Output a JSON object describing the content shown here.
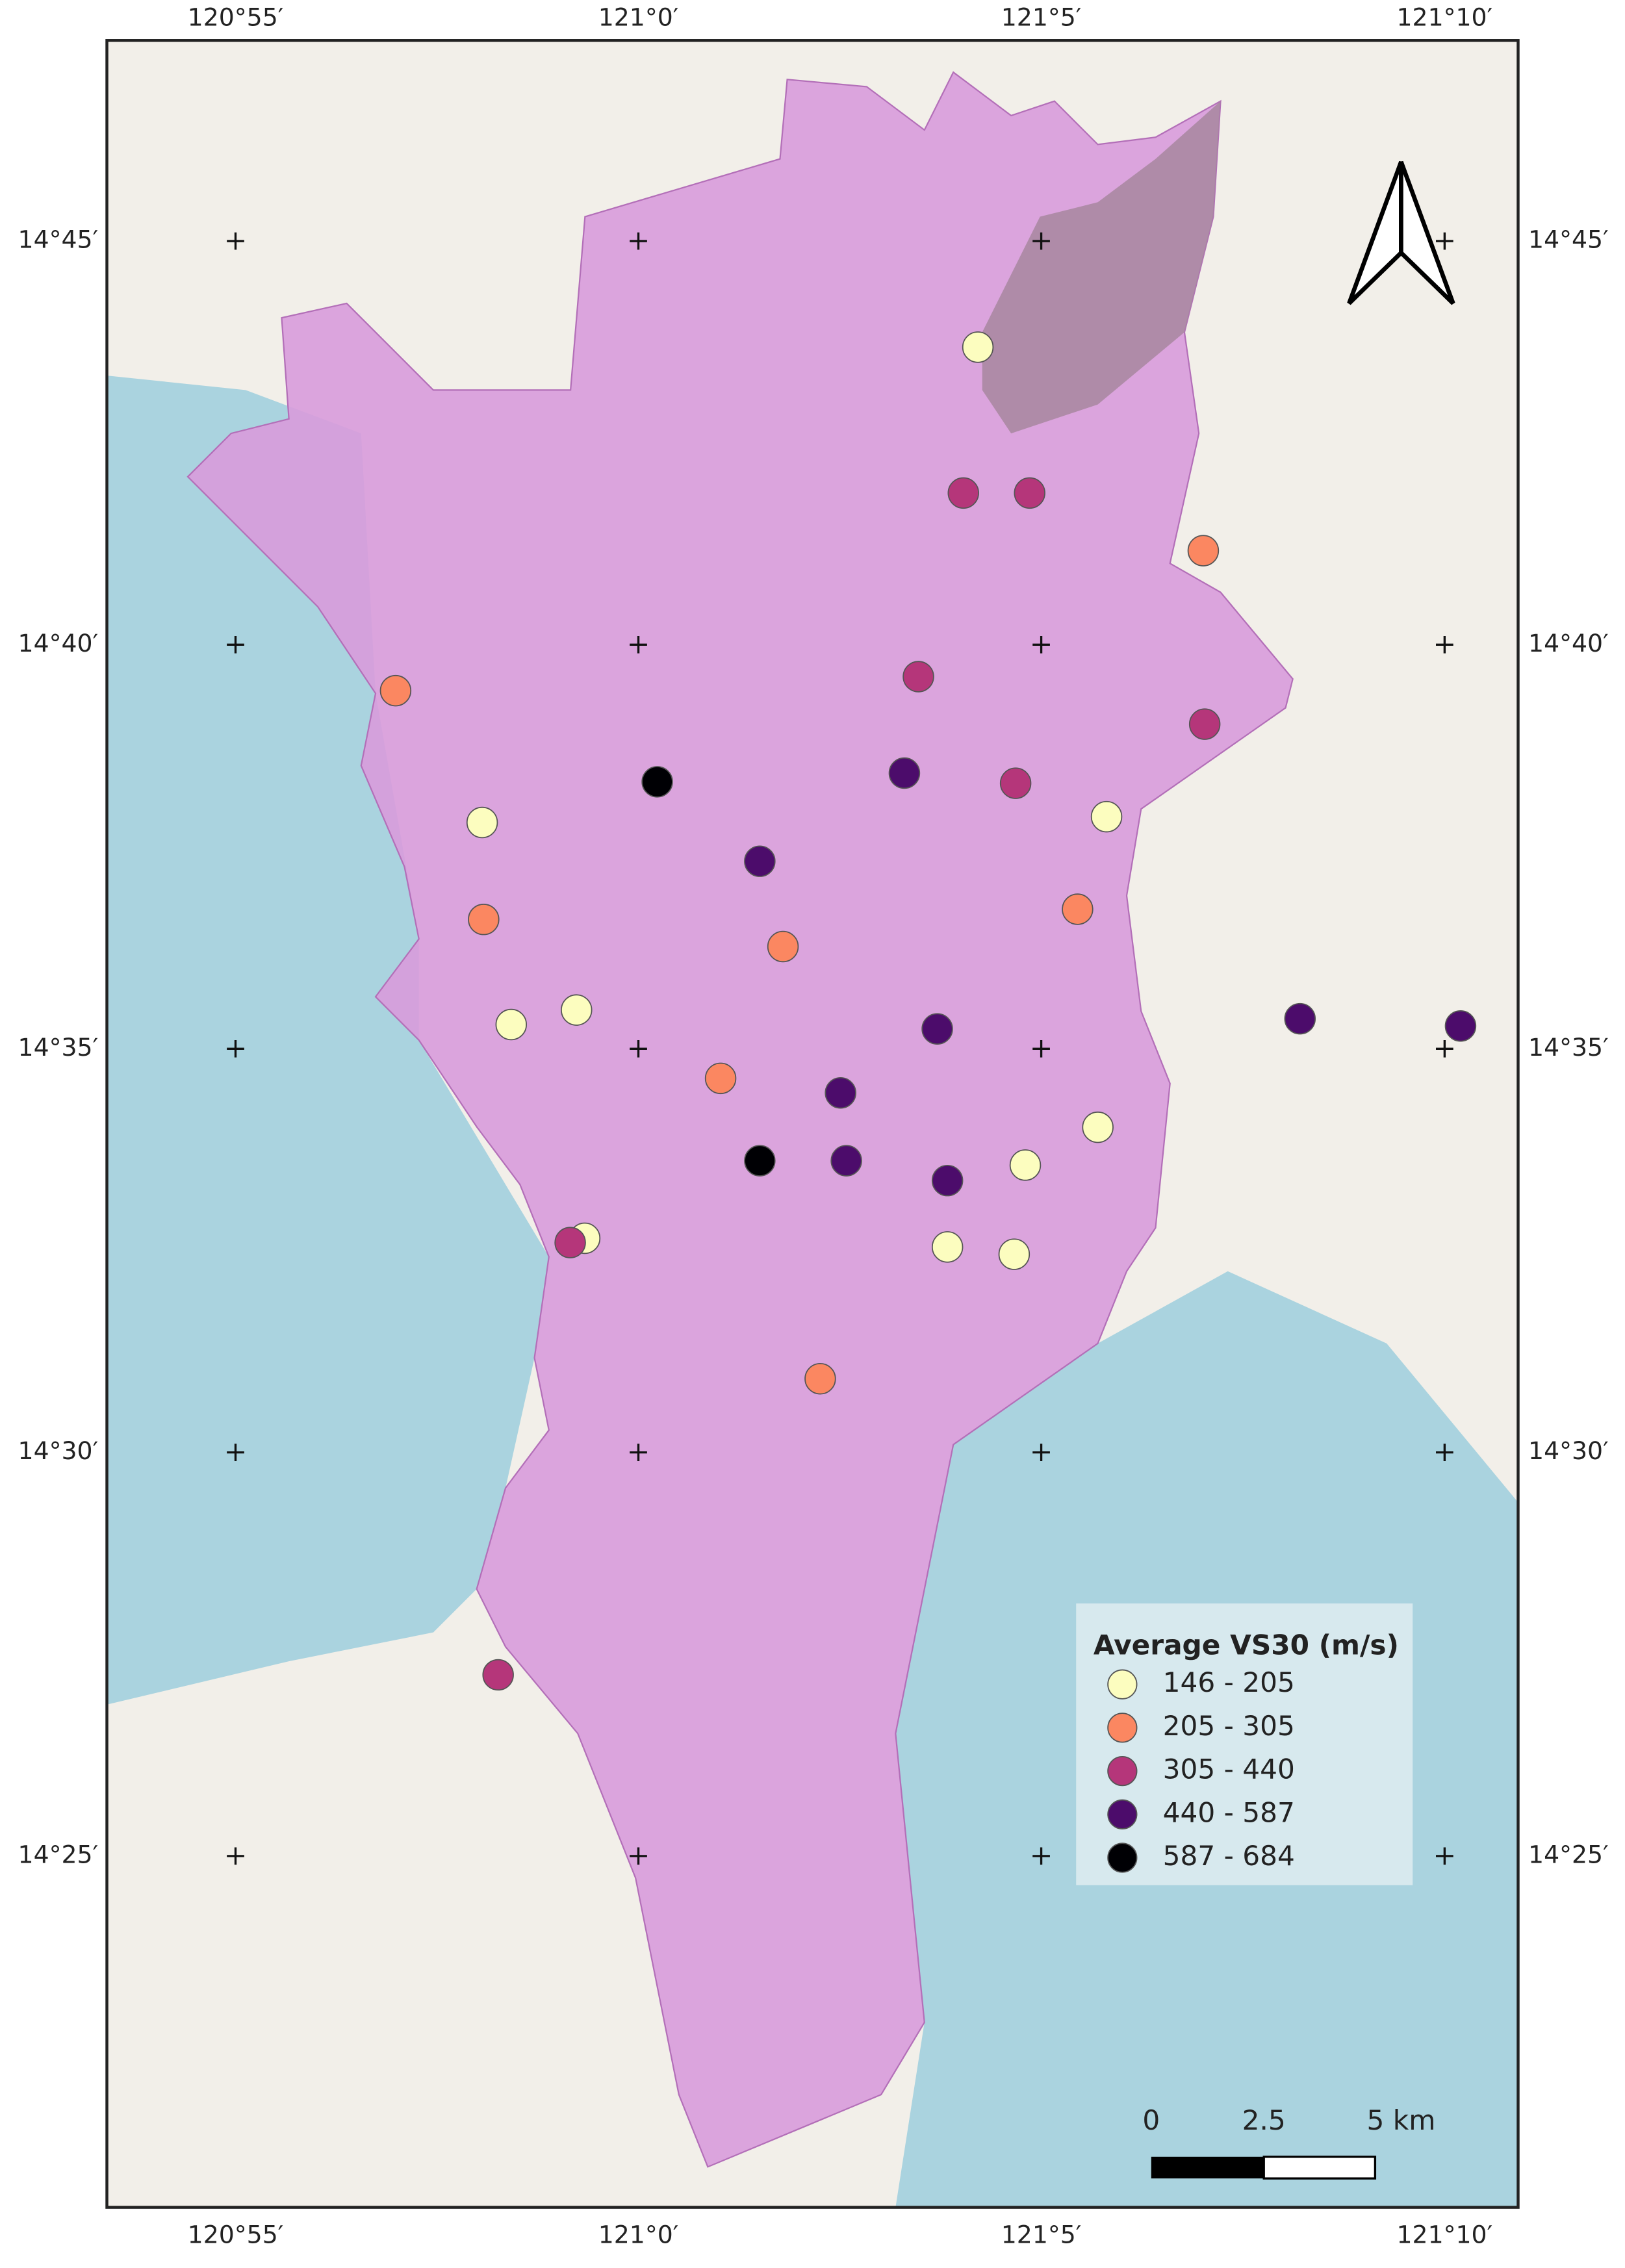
{
  "map": {
    "xlim": [
      120.8901,
      121.1819
    ],
    "ylim": [
      14.3442,
      14.7914
    ],
    "xticks": [
      {
        "value": 120.9167,
        "label": "120°55′"
      },
      {
        "value": 121.0,
        "label": "121°0′"
      },
      {
        "value": 121.0833,
        "label": "121°5′"
      },
      {
        "value": 121.1667,
        "label": "121°10′"
      }
    ],
    "yticks": [
      {
        "value": 14.75,
        "label": "14°45′"
      },
      {
        "value": 14.6667,
        "label": "14°40′"
      },
      {
        "value": 14.5833,
        "label": "14°35′"
      },
      {
        "value": 14.5,
        "label": "14°30′"
      },
      {
        "value": 14.4167,
        "label": "14°25′"
      }
    ],
    "legend_title": "Average VS30 (m/s)",
    "classes": [
      {
        "name": "146 - 205",
        "color": "#fcfdbf",
        "lon": [
          121.0702,
          121.0968,
          120.9677,
          120.9872,
          120.9737,
          121.095,
          121.08,
          120.9889,
          121.0639,
          121.0777
        ],
        "lat": [
          14.7281,
          14.6312,
          14.63,
          14.5913,
          14.5883,
          14.5671,
          14.5593,
          14.5442,
          14.5424,
          14.5409
        ]
      },
      {
        "name": "205 - 305",
        "color": "#fb8761",
        "lon": [
          121.1168,
          120.9498,
          120.968,
          121.0908,
          121.0299,
          121.017,
          121.0376
        ],
        "lat": [
          14.6861,
          14.6572,
          14.61,
          14.6121,
          14.6044,
          14.5772,
          14.5152
        ]
      },
      {
        "name": "305 - 440",
        "color": "#b5367a",
        "lon": [
          121.0672,
          121.0809,
          121.0579,
          121.1171,
          121.078,
          120.9859,
          120.971
        ],
        "lat": [
          14.698,
          14.698,
          14.6601,
          14.6503,
          14.6381,
          14.5433,
          14.4541
        ]
      },
      {
        "name": "440 - 587",
        "color": "#4c0c6b",
        "lon": [
          121.055,
          121.0251,
          121.0618,
          121.1368,
          121.17,
          121.0418,
          121.043,
          121.0639
        ],
        "lat": [
          14.6402,
          14.622,
          14.5874,
          14.5895,
          14.588,
          14.5742,
          14.5602,
          14.5561
        ]
      },
      {
        "name": "587 - 684",
        "color": "#000004",
        "lon": [
          121.0039,
          121.0251
        ],
        "lat": [
          14.6384,
          14.5602
        ]
      }
    ],
    "scale_bar": [
      "0",
      "2.5",
      "5 km"
    ]
  }
}
